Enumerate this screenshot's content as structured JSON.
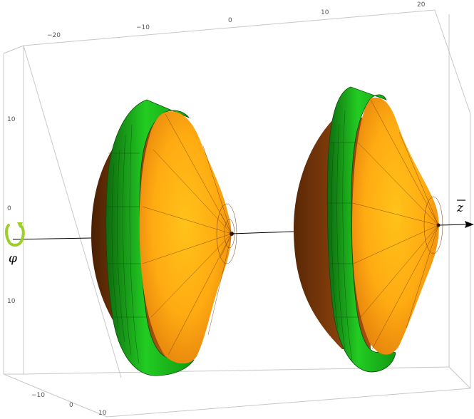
{
  "labels": {
    "axis_z": "z",
    "axis_phi": "φ"
  },
  "ticks": {
    "top": [
      "−20",
      "−10",
      "0",
      "10",
      "20"
    ],
    "left": [
      "10",
      "0",
      "10"
    ],
    "bottom_left": [
      "−10",
      "0",
      "10"
    ]
  },
  "colors": {
    "shell_light": "#ffc21a",
    "shell_mid": "#f08a10",
    "shell_dark": "#5a2806",
    "band": "#22cc22",
    "band_dark": "#0e6a0e",
    "phi_arrow": "#9ccf2a",
    "box": "#c8c8c8"
  },
  "icons": {
    "phi_rotation": "curved-rotation-arrow-icon"
  }
}
